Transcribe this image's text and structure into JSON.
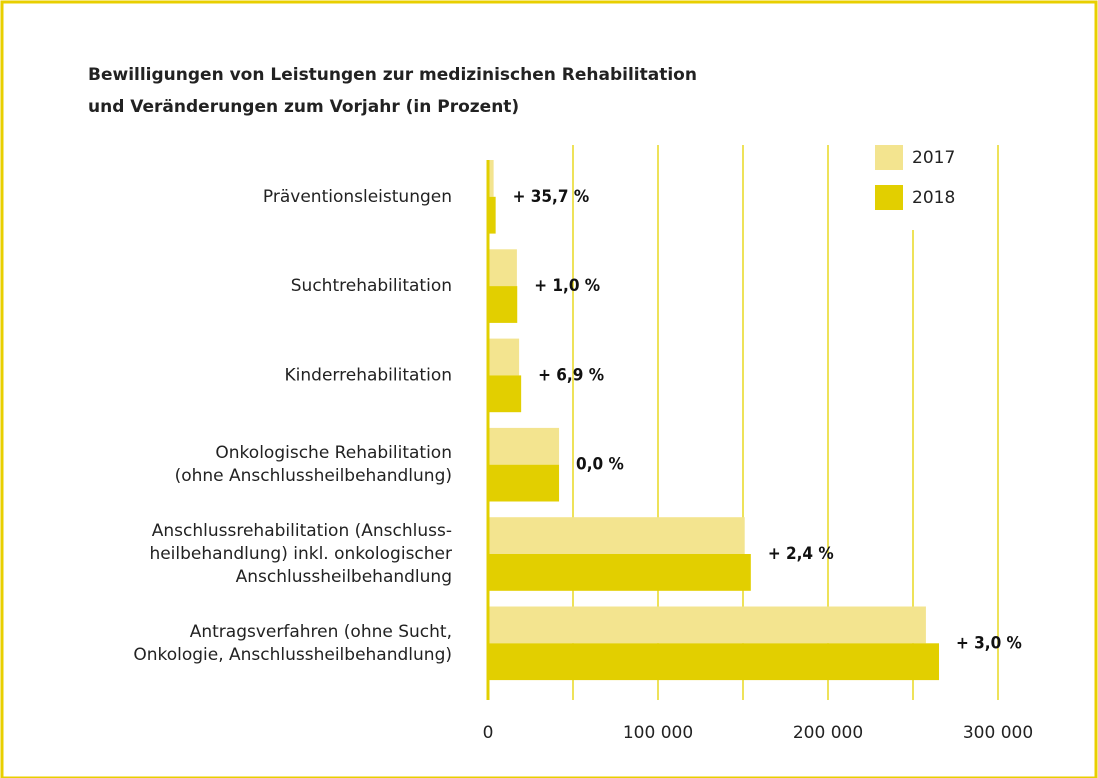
{
  "chart_data": {
    "type": "hbar",
    "title": [
      "Bewilligungen von Leistungen zur medizinischen Rehabilitation",
      "und Veränderungen zum Vorjahr (in Prozent)"
    ],
    "categories": [
      [
        "Präventionsleistungen"
      ],
      [
        "Suchtrehabilitation"
      ],
      [
        "Kinderrehabilitation"
      ],
      [
        "Onkologische Rehabilitation",
        "(ohne Anschlussheilbehandlung)"
      ],
      [
        "Anschlussrehabilitation (Anschluss-",
        "heilbehandlung) inkl. onkologischer",
        "Anschlussheilbehandlung"
      ],
      [
        "Antragsverfahren (ohne Sucht,",
        "Onkologie, Anschlussheilbehandlung)"
      ]
    ],
    "series": [
      {
        "name": "2017",
        "color": "#f3e48f",
        "values": [
          3300,
          17000,
          18300,
          41800,
          151000,
          257600
        ]
      },
      {
        "name": "2018",
        "color": "#e2cf00",
        "values": [
          4500,
          17200,
          19500,
          41800,
          154600,
          265300
        ]
      }
    ],
    "annotations": [
      "+ 35,7 %",
      "+ 1,0 %",
      "+ 6,9 %",
      "0,0 %",
      "+ 2,4 %",
      "+ 3,0 %"
    ],
    "xlim": [
      0,
      320000
    ],
    "xticks": [
      0,
      {
        "value": 100000,
        "label": "100 000"
      },
      {
        "value": 200000,
        "label": "200 000"
      },
      {
        "value": 300000,
        "label": "300 000"
      }
    ],
    "gridlines": [
      50000,
      100000,
      150000,
      200000,
      250000,
      300000
    ],
    "grid": true,
    "legend": "upper right"
  }
}
